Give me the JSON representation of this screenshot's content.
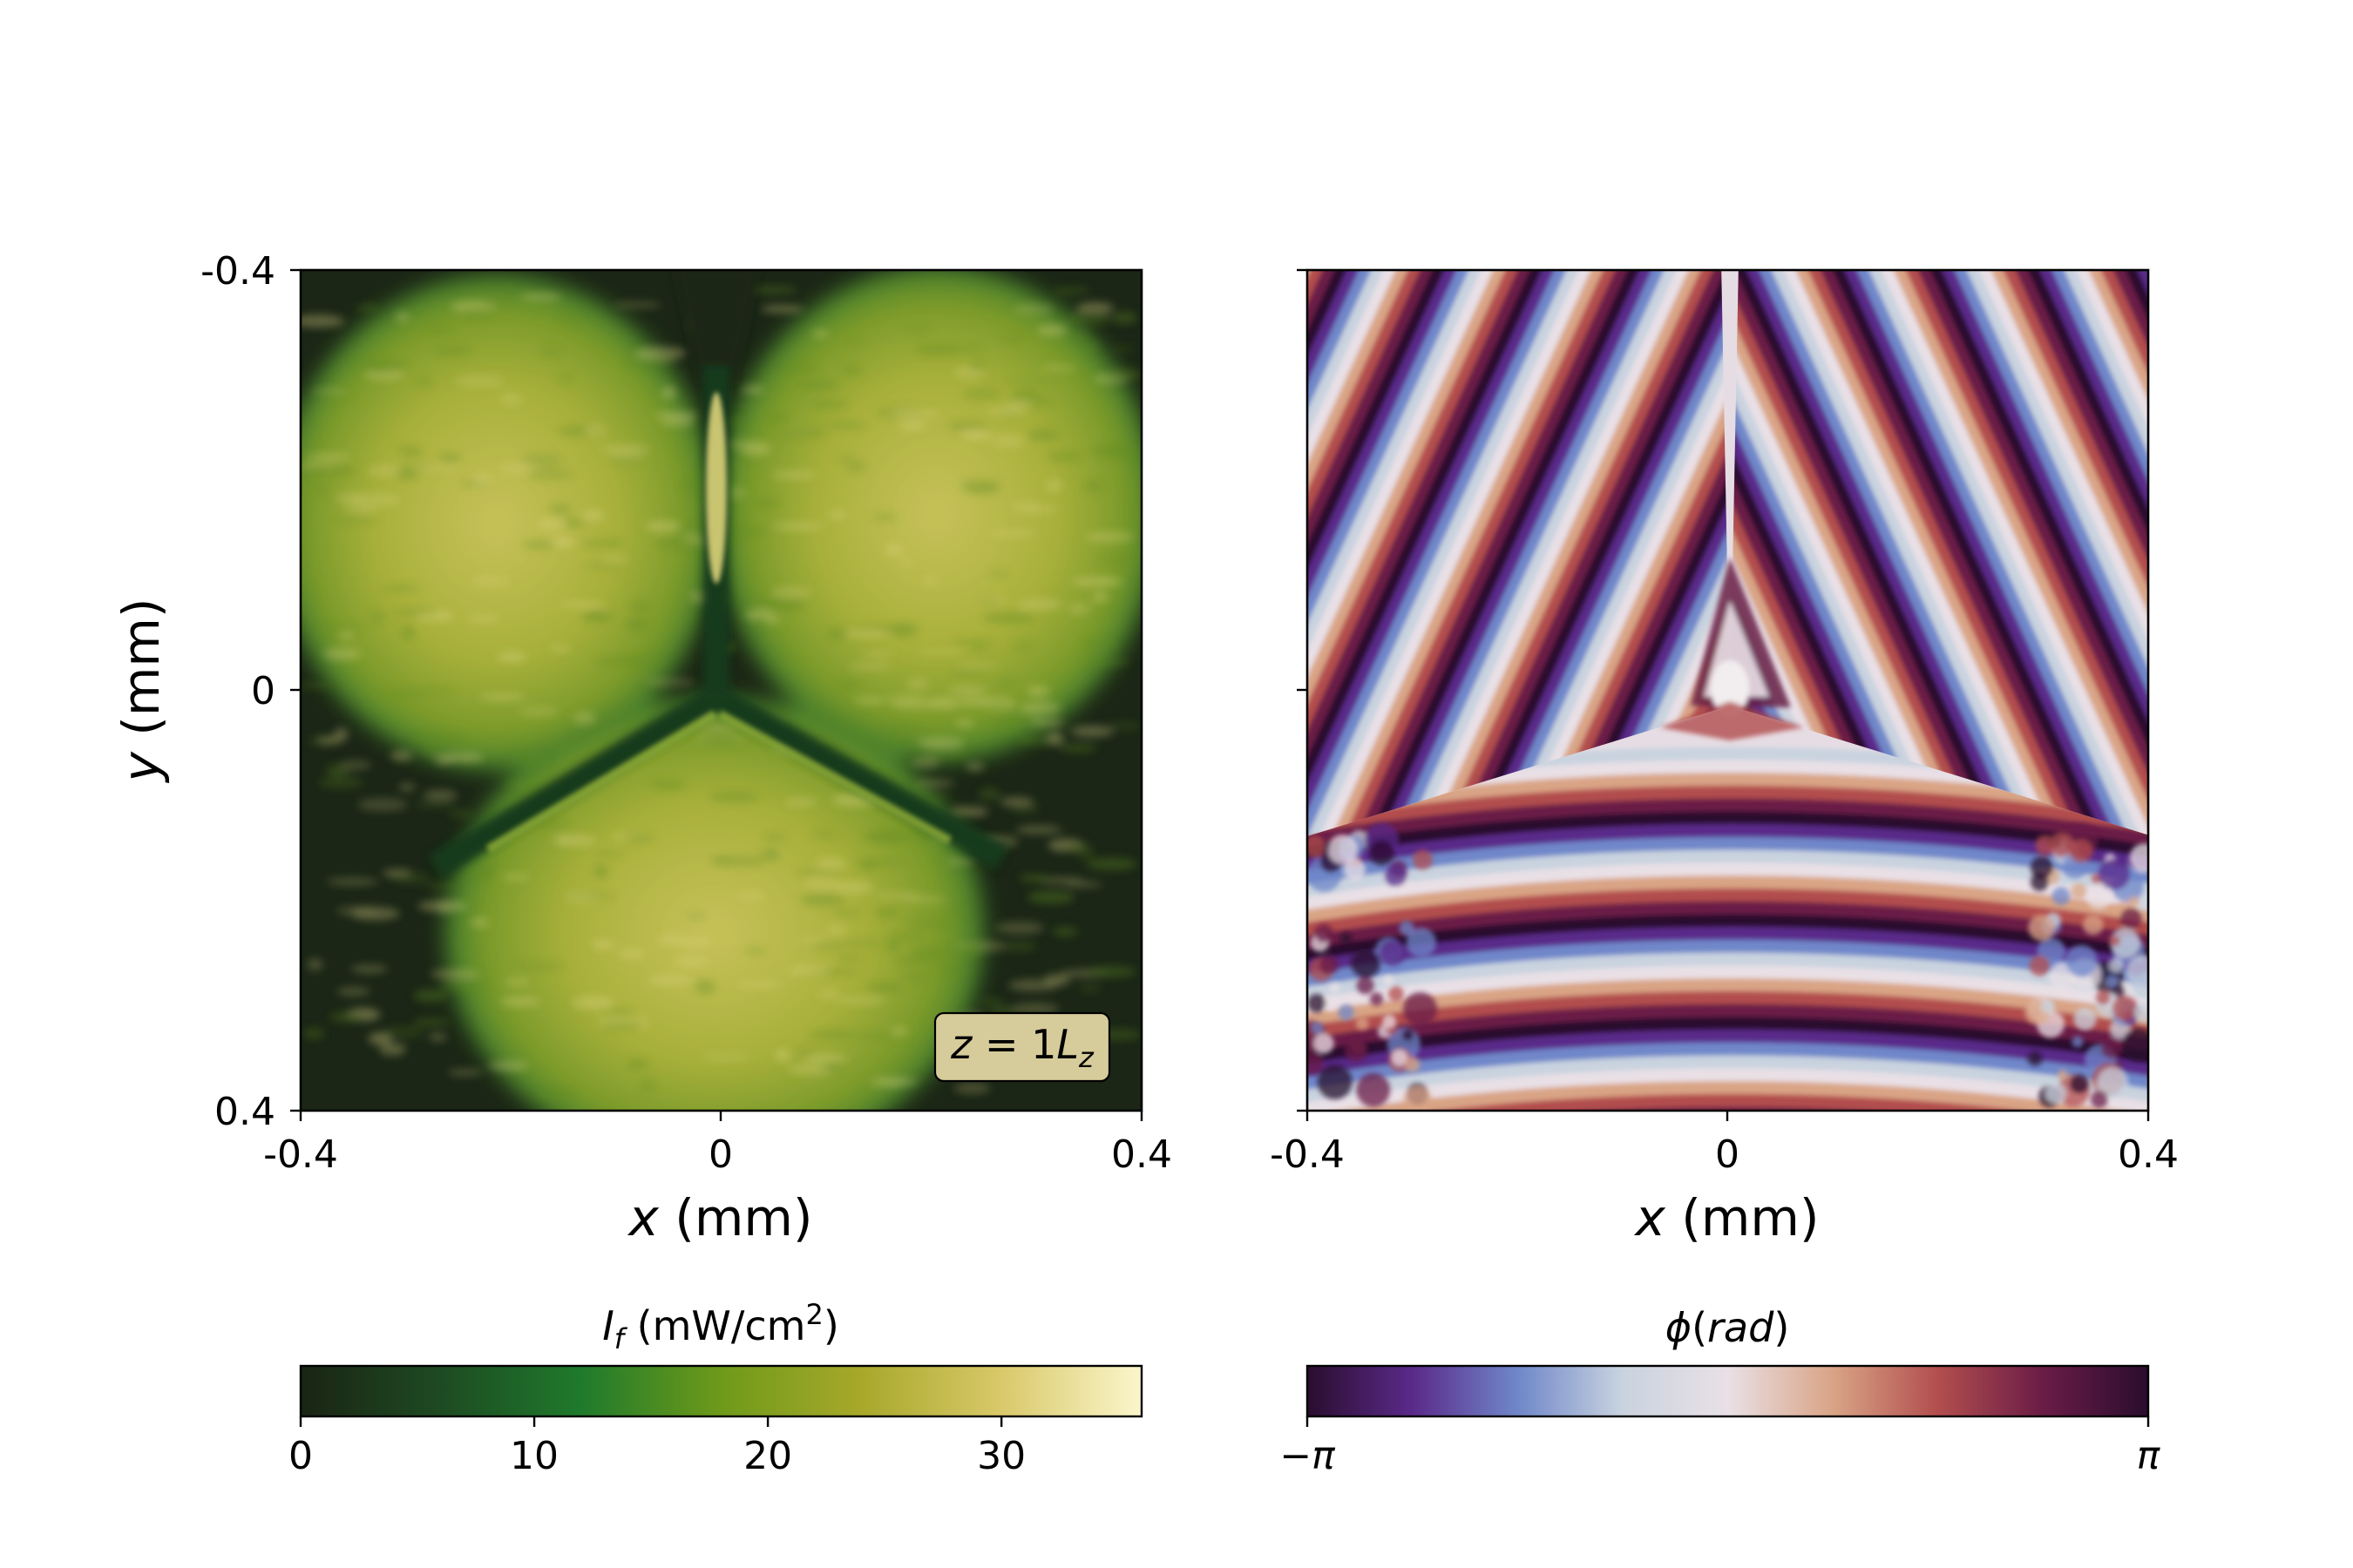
{
  "chart_data": [
    {
      "type": "heatmap",
      "panel": "intensity",
      "xlabel": {
        "var": "x",
        "unit": " (mm)"
      },
      "ylabel": {
        "var": "y",
        "unit": " (mm)"
      },
      "xlim": [
        -0.4,
        0.4
      ],
      "ylim": [
        -0.4,
        0.4
      ],
      "y_axis_inverted": true,
      "x_ticks": [
        "-0.4",
        "0",
        "0.4"
      ],
      "y_ticks": [
        "-0.4",
        "0",
        "0.4"
      ],
      "annotation": {
        "lhs": "z",
        "eq": " = 1",
        "rhs": "L",
        "sub": "z",
        "text": "z = 1L_z",
        "position": "bottom-right"
      },
      "field": "three overlapping bright lobes (upper-left, upper-right, bottom) separated by dark seams meeting at (0, 0.01)",
      "colorbar": {
        "label": {
          "var": "I",
          "sub": "f",
          "unit_pre": " (mW/cm",
          "sup": "2",
          "unit_post": ")"
        },
        "range": [
          0,
          36
        ],
        "ticks": [
          {
            "value": 0,
            "label": "0"
          },
          {
            "value": 10,
            "label": "10"
          },
          {
            "value": 20,
            "label": "20"
          },
          {
            "value": 30,
            "label": "30"
          }
        ],
        "colormap": [
          "#1a2414",
          "#1e4a22",
          "#1f7a2c",
          "#6e9a1a",
          "#a8a82a",
          "#d9c96a",
          "#fbf6cc"
        ]
      }
    },
    {
      "type": "heatmap",
      "panel": "phase",
      "xlabel": {
        "var": "x",
        "unit": " (mm)"
      },
      "xlim": [
        -0.4,
        0.4
      ],
      "ylim": [
        -0.4,
        0.4
      ],
      "y_axis_inverted": true,
      "x_ticks": [
        "-0.4",
        "0",
        "0.4"
      ],
      "field": "phase fringes: diagonal stripes in the upper half, horizontal stripes in the lower half, converging in a triangular pattern at (0, 0)",
      "colorbar": {
        "label": {
          "var": "ϕ",
          "paren_open": "(",
          "unit": "rad",
          "paren_close": ")"
        },
        "range": [
          "−π",
          "π"
        ],
        "ticks": [
          {
            "value": 0,
            "label": "−π"
          },
          {
            "value": 1,
            "label": "π"
          }
        ],
        "colormap": [
          "#2a0d2e",
          "#5a2a8a",
          "#6f87c9",
          "#c9d3df",
          "#e9e0e6",
          "#d9a486",
          "#b24e4e",
          "#6a1c46",
          "#2a0d2e"
        ]
      }
    }
  ]
}
